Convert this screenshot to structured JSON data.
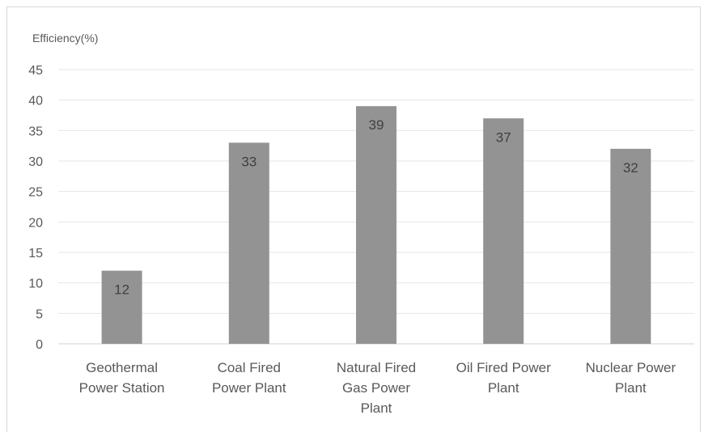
{
  "chart_data": {
    "type": "bar",
    "ylabel": "Efficiency(%)",
    "categories": [
      [
        "Geothermal",
        "Power Station"
      ],
      [
        "Coal Fired",
        "Power Plant"
      ],
      [
        "Natural Fired",
        "Gas Power",
        "Plant"
      ],
      [
        "Oil Fired Power",
        "Plant"
      ],
      [
        "Nuclear Power",
        "Plant"
      ]
    ],
    "values": [
      12,
      33,
      39,
      37,
      32
    ],
    "ylim": [
      0,
      45
    ],
    "yticks": [
      0,
      5,
      10,
      15,
      20,
      25,
      30,
      35,
      40,
      45
    ],
    "grid": true,
    "data_labels": true,
    "colors": {
      "bar": "#939393",
      "grid": "#e6e6e6",
      "axis": "#d0d0d0",
      "text": "#595959"
    }
  }
}
